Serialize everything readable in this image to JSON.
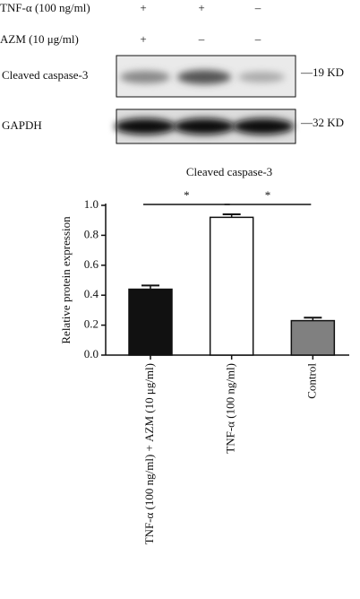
{
  "blot": {
    "treatments": [
      {
        "label": "TNF-α (100 ng/ml)",
        "signs": [
          "+",
          "+",
          "–"
        ]
      },
      {
        "label": "AZM (10 μg/ml)",
        "signs": [
          "+",
          "–",
          "–"
        ]
      }
    ],
    "bands": [
      {
        "label": "Cleaved caspase-3",
        "size": "—19 KD"
      },
      {
        "label": "GAPDH",
        "size": "—32 KD"
      }
    ]
  },
  "chart_data": {
    "type": "bar",
    "title": "Cleaved caspase-3",
    "y_label": "Relative protein expression",
    "categories": [
      "TNF-α (100 ng/ml) + AZM (10 μg/ml)",
      "TNF-α (100 ng/ml)",
      "Control"
    ],
    "values": [
      0.44,
      0.92,
      0.23
    ],
    "errors": [
      0.025,
      0.02,
      0.02
    ],
    "colors": [
      "#111111",
      "#ffffff",
      "#808080"
    ],
    "ylim": [
      0,
      1.0
    ],
    "yticks": [
      {
        "value": 0,
        "label": "0.0"
      },
      0.2,
      0.4,
      0.6,
      0.8,
      {
        "value": 1.0,
        "label": "1.0"
      }
    ],
    "annotations": [
      "*",
      "*"
    ]
  }
}
